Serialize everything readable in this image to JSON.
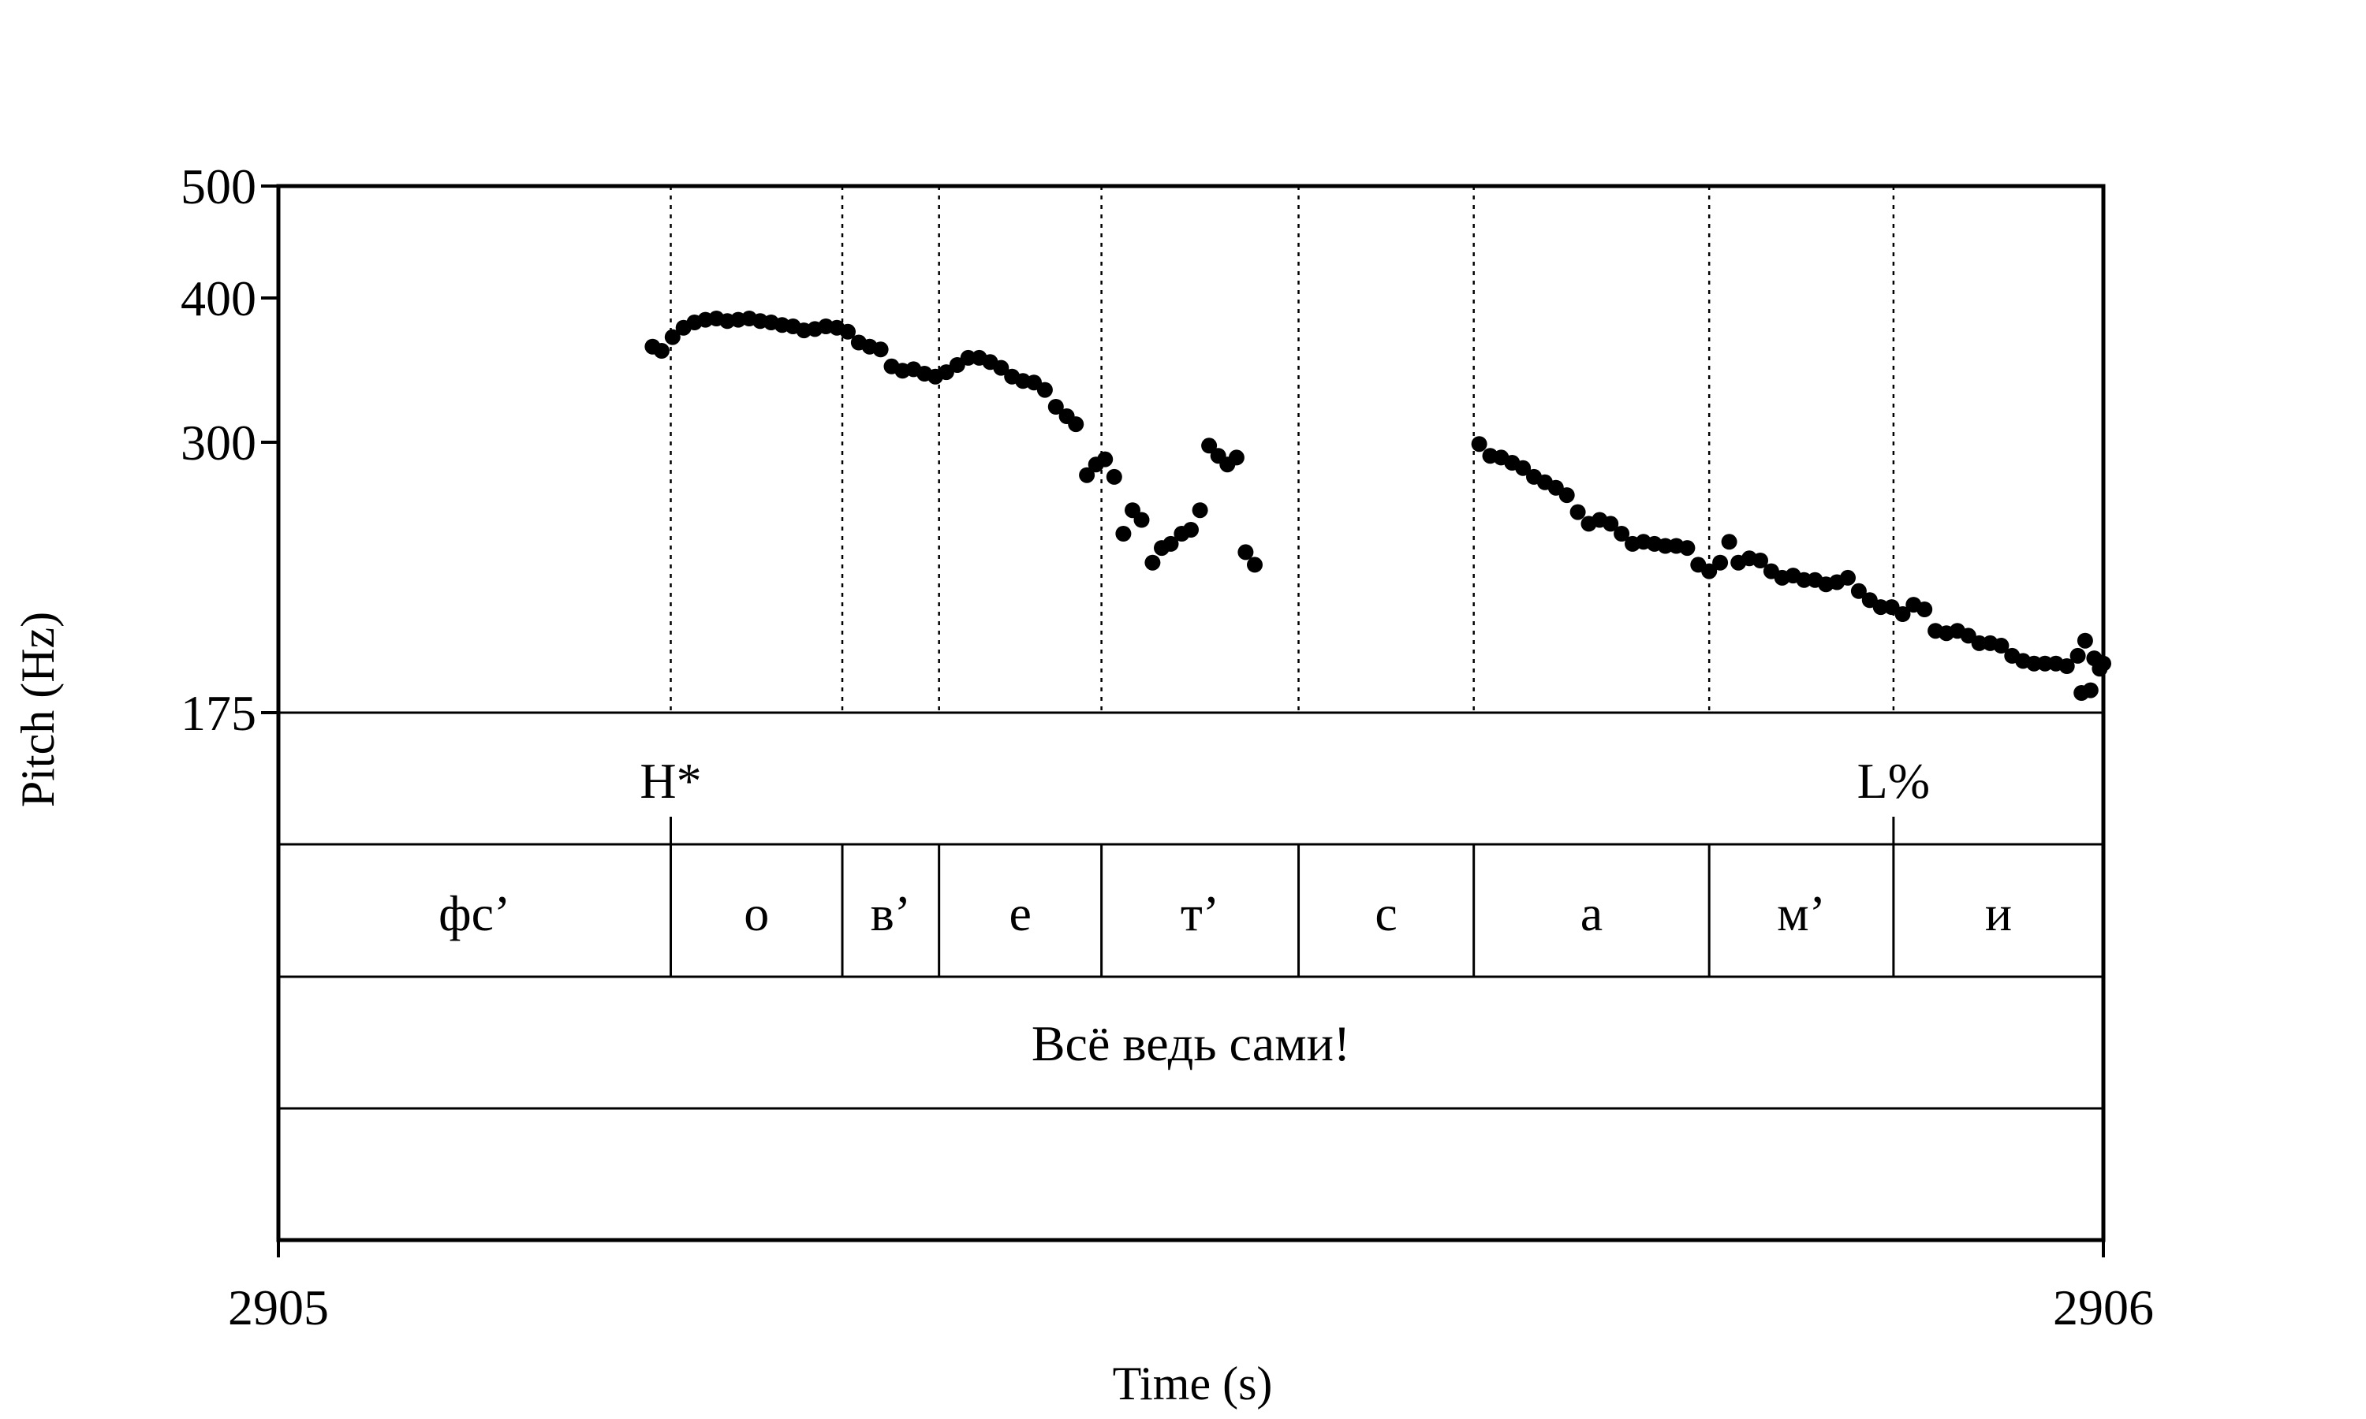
{
  "chart_data": {
    "type": "scatter",
    "title": "",
    "xlabel": "Time (s)",
    "ylabel": "Pitch (Hz)",
    "xlim": [
      2905,
      2906
    ],
    "ylim": [
      175,
      500
    ],
    "y_scale": "log",
    "x_ticks": [
      "2905",
      "2906"
    ],
    "y_ticks": [
      {
        "value": 500,
        "label": "500"
      },
      {
        "value": 400,
        "label": "400"
      },
      {
        "value": 300,
        "label": "300"
      },
      {
        "value": 175,
        "label": "175"
      }
    ],
    "grid": false,
    "boundaries": [
      2905.215,
      2905.309,
      2905.362,
      2905.451,
      2905.559,
      2905.655,
      2905.784,
      2905.885
    ],
    "tiers": {
      "tones": [
        {
          "time": 2905.215,
          "label": "H*"
        },
        {
          "time": 2905.885,
          "label": "L%"
        }
      ],
      "phones": [
        {
          "start": 2905.0,
          "end": 2905.215,
          "label": "фс’"
        },
        {
          "start": 2905.215,
          "end": 2905.309,
          "label": "о"
        },
        {
          "start": 2905.309,
          "end": 2905.362,
          "label": "в’"
        },
        {
          "start": 2905.362,
          "end": 2905.451,
          "label": "е"
        },
        {
          "start": 2905.451,
          "end": 2905.559,
          "label": "т’"
        },
        {
          "start": 2905.559,
          "end": 2905.655,
          "label": "с"
        },
        {
          "start": 2905.655,
          "end": 2905.784,
          "label": "а"
        },
        {
          "start": 2905.784,
          "end": 2905.885,
          "label": "м’"
        },
        {
          "start": 2905.885,
          "end": 2906.0,
          "label": "и"
        }
      ],
      "words": [
        {
          "start": 2905.0,
          "end": 2906.0,
          "label": "Всё ведь сами!"
        }
      ]
    },
    "series": [
      {
        "points": [
          [
            2905.205,
            363
          ],
          [
            2905.21,
            360
          ],
          [
            2905.216,
            370
          ],
          [
            2905.222,
            377
          ],
          [
            2905.228,
            381
          ],
          [
            2905.234,
            383
          ],
          [
            2905.24,
            384
          ],
          [
            2905.246,
            382
          ],
          [
            2905.252,
            383
          ],
          [
            2905.258,
            384
          ],
          [
            2905.264,
            382
          ],
          [
            2905.27,
            381
          ],
          [
            2905.276,
            379
          ],
          [
            2905.282,
            378
          ],
          [
            2905.288,
            375
          ],
          [
            2905.294,
            376
          ],
          [
            2905.3,
            378
          ],
          [
            2905.306,
            377
          ],
          [
            2905.312,
            374
          ],
          [
            2905.318,
            366
          ],
          [
            2905.324,
            363
          ],
          [
            2905.33,
            361
          ],
          [
            2905.336,
            349
          ],
          [
            2905.342,
            346
          ],
          [
            2905.348,
            347
          ],
          [
            2905.354,
            344
          ],
          [
            2905.36,
            342
          ],
          [
            2905.366,
            345
          ],
          [
            2905.372,
            350
          ],
          [
            2905.378,
            355
          ],
          [
            2905.384,
            355
          ],
          [
            2905.39,
            352
          ],
          [
            2905.396,
            348
          ],
          [
            2905.402,
            342
          ],
          [
            2905.408,
            339
          ],
          [
            2905.414,
            338
          ],
          [
            2905.42,
            333
          ],
          [
            2905.426,
            322
          ],
          [
            2905.432,
            316
          ],
          [
            2905.437,
            311
          ],
          [
            2905.443,
            281
          ],
          [
            2905.448,
            287
          ],
          [
            2905.453,
            290
          ],
          [
            2905.458,
            280
          ],
          [
            2905.463,
            250
          ],
          [
            2905.468,
            262
          ],
          [
            2905.473,
            257
          ],
          [
            2905.479,
            236
          ],
          [
            2905.484,
            243
          ],
          [
            2905.489,
            245
          ],
          [
            2905.495,
            250
          ],
          [
            2905.5,
            252
          ],
          [
            2905.505,
            262
          ],
          [
            2905.51,
            298
          ],
          [
            2905.515,
            292
          ],
          [
            2905.52,
            287
          ],
          [
            2905.525,
            291
          ],
          [
            2905.53,
            241
          ],
          [
            2905.535,
            235
          ],
          [
            2905.658,
            299
          ],
          [
            2905.664,
            292
          ],
          [
            2905.67,
            291
          ],
          [
            2905.676,
            288
          ],
          [
            2905.682,
            285
          ],
          [
            2905.688,
            280
          ],
          [
            2905.694,
            277
          ],
          [
            2905.7,
            274
          ],
          [
            2905.706,
            270
          ],
          [
            2905.712,
            261
          ],
          [
            2905.718,
            255
          ],
          [
            2905.724,
            257
          ],
          [
            2905.73,
            255
          ],
          [
            2905.736,
            250
          ],
          [
            2905.742,
            245
          ],
          [
            2905.748,
            246
          ],
          [
            2905.754,
            245
          ],
          [
            2905.76,
            244
          ],
          [
            2905.766,
            244
          ],
          [
            2905.772,
            243
          ],
          [
            2905.778,
            235
          ],
          [
            2905.784,
            232
          ],
          [
            2905.79,
            236
          ],
          [
            2905.795,
            246
          ],
          [
            2905.8,
            236
          ],
          [
            2905.806,
            238
          ],
          [
            2905.812,
            237
          ],
          [
            2905.818,
            232
          ],
          [
            2905.824,
            229
          ],
          [
            2905.83,
            230
          ],
          [
            2905.836,
            228
          ],
          [
            2905.842,
            228
          ],
          [
            2905.848,
            226
          ],
          [
            2905.854,
            227
          ],
          [
            2905.86,
            229
          ],
          [
            2905.866,
            223
          ],
          [
            2905.872,
            219
          ],
          [
            2905.878,
            216
          ],
          [
            2905.884,
            216
          ],
          [
            2905.89,
            213
          ],
          [
            2905.896,
            217
          ],
          [
            2905.902,
            215
          ],
          [
            2905.908,
            206
          ],
          [
            2905.914,
            205
          ],
          [
            2905.92,
            206
          ],
          [
            2905.926,
            204
          ],
          [
            2905.932,
            201
          ],
          [
            2905.938,
            201
          ],
          [
            2905.944,
            200
          ],
          [
            2905.95,
            196
          ],
          [
            2905.956,
            194
          ],
          [
            2905.962,
            193
          ],
          [
            2905.968,
            193
          ],
          [
            2905.974,
            193
          ],
          [
            2905.98,
            192
          ],
          [
            2905.986,
            196
          ],
          [
            2905.99,
            202
          ],
          [
            2905.995,
            195
          ],
          [
            2905.998,
            191
          ],
          [
            2905.988,
            182
          ],
          [
            2905.993,
            183
          ],
          [
            2906.0,
            193
          ]
        ]
      }
    ]
  }
}
